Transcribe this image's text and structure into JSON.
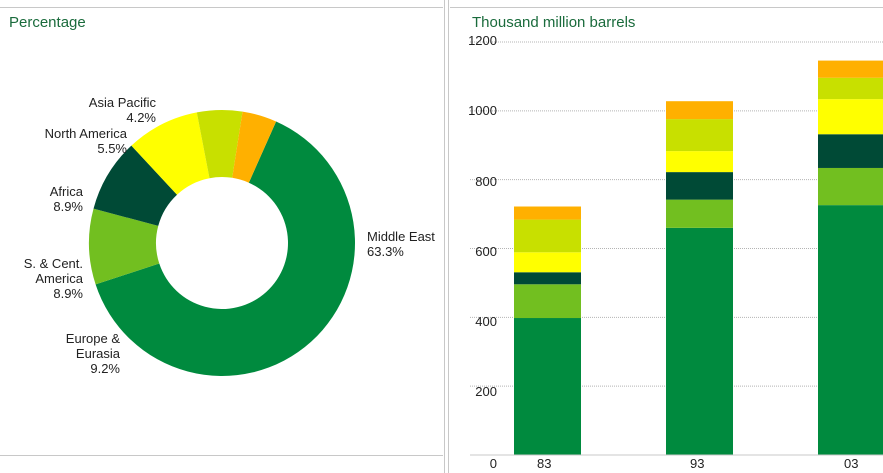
{
  "chart_data": [
    {
      "type": "pie",
      "title": "Percentage",
      "donut": true,
      "slices": [
        {
          "label": "Middle East",
          "value": 63.3,
          "display": "63.3%",
          "color": "#008a3e"
        },
        {
          "label": "Europe & Eurasia",
          "value": 9.2,
          "display": "9.2%",
          "color": "#72bf20"
        },
        {
          "label": "S. & Cent. America",
          "value": 8.9,
          "display": "8.9%",
          "color": "#004a36"
        },
        {
          "label": "Africa",
          "value": 8.9,
          "display": "8.9%",
          "color": "#ffff00"
        },
        {
          "label": "North America",
          "value": 5.5,
          "display": "5.5%",
          "color": "#c8e000"
        },
        {
          "label": "Asia Pacific",
          "value": 4.2,
          "display": "4.2%",
          "color": "#ffb000"
        }
      ]
    },
    {
      "type": "bar",
      "stacked": true,
      "title": "Thousand million barrels",
      "categories": [
        "83",
        "93",
        "03"
      ],
      "ylim": [
        0,
        1200
      ],
      "yticks": [
        "0",
        "200",
        "400",
        "600",
        "800",
        "1000",
        "1200"
      ],
      "grid": true,
      "series": [
        {
          "name": "Middle East",
          "color": "#008a3e",
          "values": [
            398,
            660,
            726
          ]
        },
        {
          "name": "Europe & Eurasia",
          "color": "#72bf20",
          "values": [
            98,
            82,
            108
          ]
        },
        {
          "name": "S. & Cent. America",
          "color": "#004a36",
          "values": [
            35,
            80,
            98
          ]
        },
        {
          "name": "Africa",
          "color": "#ffff00",
          "values": [
            58,
            61,
            102
          ]
        },
        {
          "name": "North America",
          "color": "#c8e000",
          "values": [
            95,
            93,
            62
          ]
        },
        {
          "name": "Asia Pacific",
          "color": "#ffb000",
          "values": [
            38,
            52,
            50
          ]
        }
      ]
    }
  ]
}
